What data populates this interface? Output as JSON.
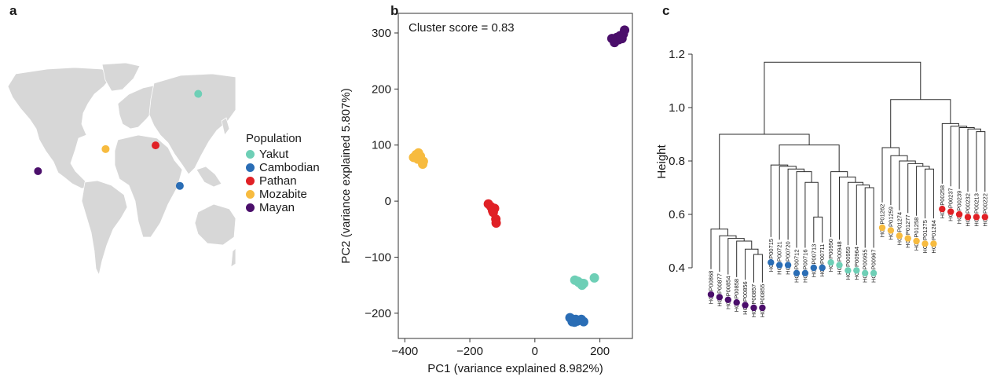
{
  "panels": {
    "a": {
      "letter": "a",
      "legend_title": "Population",
      "populations": [
        {
          "name": "Yakut",
          "color": "#6ecfb6"
        },
        {
          "name": "Cambodian",
          "color": "#2a6db5"
        },
        {
          "name": "Pathan",
          "color": "#e02126"
        },
        {
          "name": "Mozabite",
          "color": "#f7bb3f"
        },
        {
          "name": "Mayan",
          "color": "#4b0f6b"
        }
      ],
      "map_points": [
        {
          "population": "Yakut",
          "lon": 129,
          "lat": 62
        },
        {
          "population": "Cambodian",
          "lon": 104,
          "lat": 12
        },
        {
          "population": "Pathan",
          "lon": 71,
          "lat": 34
        },
        {
          "population": "Mozabite",
          "lon": 3,
          "lat": 32
        },
        {
          "population": "Mayan",
          "lon": -89,
          "lat": 20
        }
      ]
    },
    "b": {
      "letter": "b"
    },
    "c": {
      "letter": "c"
    }
  },
  "chart_data": [
    {
      "type": "scatter",
      "title": "",
      "annotation": "Cluster score = 0.83",
      "xlabel": "PC1 (variance explained 8.982%)",
      "ylabel": "PC2 (variance explained 5.807%)",
      "xlim": [
        -420,
        300
      ],
      "ylim": [
        -245,
        335
      ],
      "xticks": [
        -400,
        -200,
        0,
        200
      ],
      "yticks": [
        -200,
        -100,
        0,
        100,
        200,
        300
      ],
      "series": [
        {
          "name": "Mayan",
          "color": "#4b0f6b",
          "points": [
            [
              237,
              290
            ],
            [
              245,
              283
            ],
            [
              252,
              292
            ],
            [
              258,
              288
            ],
            [
              262,
              295
            ],
            [
              268,
              290
            ],
            [
              272,
              298
            ],
            [
              276,
              305
            ],
            [
              250,
              287
            ],
            [
              265,
              292
            ]
          ]
        },
        {
          "name": "Mozabite",
          "color": "#f7bb3f",
          "points": [
            [
              -373,
              78
            ],
            [
              -365,
              83
            ],
            [
              -360,
              75
            ],
            [
              -358,
              86
            ],
            [
              -352,
              80
            ],
            [
              -345,
              66
            ],
            [
              -343,
              71
            ],
            [
              -368,
              79
            ]
          ]
        },
        {
          "name": "Pathan",
          "color": "#e02126",
          "points": [
            [
              -143,
              -5
            ],
            [
              -135,
              -10
            ],
            [
              -130,
              -17
            ],
            [
              -124,
              -13
            ],
            [
              -120,
              -32
            ],
            [
              -119,
              -39
            ],
            [
              -128,
              -20
            ]
          ]
        },
        {
          "name": "Yakut",
          "color": "#6ecfb6",
          "points": [
            [
              123,
              -141
            ],
            [
              132,
              -143
            ],
            [
              140,
              -146
            ],
            [
              145,
              -150
            ],
            [
              150,
              -147
            ],
            [
              183,
              -137
            ],
            [
              135,
              -145
            ]
          ]
        },
        {
          "name": "Cambodian",
          "color": "#2a6db5",
          "points": [
            [
              108,
              -208
            ],
            [
              113,
              -210
            ],
            [
              118,
              -213
            ],
            [
              122,
              -216
            ],
            [
              126,
              -211
            ],
            [
              130,
              -214
            ],
            [
              143,
              -211
            ],
            [
              150,
              -215
            ],
            [
              115,
              -215
            ]
          ]
        }
      ]
    },
    {
      "type": "dendrogram",
      "title": "",
      "ylabel": "Height",
      "ylim": [
        0.3,
        1.25
      ],
      "yticks": [
        0.4,
        0.6,
        0.8,
        1.0,
        1.2
      ],
      "leaves": [
        {
          "label": "HGDP00868",
          "population": "Mayan"
        },
        {
          "label": "HGDP00877",
          "population": "Mayan"
        },
        {
          "label": "HGDP00854",
          "population": "Mayan"
        },
        {
          "label": "HGDP00858",
          "population": "Mayan"
        },
        {
          "label": "HGDP00856",
          "population": "Mayan"
        },
        {
          "label": "HGDP00857",
          "population": "Mayan"
        },
        {
          "label": "HGDP00855",
          "population": "Mayan"
        },
        {
          "label": "HGDP00715",
          "population": "Cambodian"
        },
        {
          "label": "HGDP00721",
          "population": "Cambodian"
        },
        {
          "label": "HGDP00720",
          "population": "Cambodian"
        },
        {
          "label": "HGDP00712",
          "population": "Cambodian"
        },
        {
          "label": "HGDP00716",
          "population": "Cambodian"
        },
        {
          "label": "HGDP00713",
          "population": "Cambodian"
        },
        {
          "label": "HGDP00711",
          "population": "Cambodian"
        },
        {
          "label": "HGDP00950",
          "population": "Yakut"
        },
        {
          "label": "HGDP00948",
          "population": "Yakut"
        },
        {
          "label": "HGDP00959",
          "population": "Yakut"
        },
        {
          "label": "HGDP00964",
          "population": "Yakut"
        },
        {
          "label": "HGDP00955",
          "population": "Yakut"
        },
        {
          "label": "HGDP00967",
          "population": "Yakut"
        },
        {
          "label": "HGDP01262",
          "population": "Mozabite"
        },
        {
          "label": "HGDP01259",
          "population": "Mozabite"
        },
        {
          "label": "HGDP01274",
          "population": "Mozabite"
        },
        {
          "label": "HGDP01277",
          "population": "Mozabite"
        },
        {
          "label": "HGDP01258",
          "population": "Mozabite"
        },
        {
          "label": "HGDP01275",
          "population": "Mozabite"
        },
        {
          "label": "HGDP01264",
          "population": "Mozabite"
        },
        {
          "label": "HGDP00258",
          "population": "Pathan"
        },
        {
          "label": "HGDP00237",
          "population": "Pathan"
        },
        {
          "label": "HGDP00239",
          "population": "Pathan"
        },
        {
          "label": "HGDP00232",
          "population": "Pathan"
        },
        {
          "label": "HGDP00213",
          "population": "Pathan"
        },
        {
          "label": "HGDP00222",
          "population": "Pathan"
        }
      ],
      "leaf_heights": [
        0.37,
        0.36,
        0.35,
        0.34,
        0.33,
        0.32,
        0.32,
        0.49,
        0.48,
        0.48,
        0.45,
        0.45,
        0.47,
        0.47,
        0.49,
        0.48,
        0.46,
        0.46,
        0.45,
        0.45,
        0.62,
        0.61,
        0.59,
        0.58,
        0.57,
        0.56,
        0.56,
        0.69,
        0.68,
        0.67,
        0.66,
        0.66,
        0.66
      ],
      "merges": [
        [
          5,
          6,
          0.45
        ],
        [
          4,
          -1,
          0.47
        ],
        [
          3,
          -2,
          0.5
        ],
        [
          2,
          -3,
          0.51
        ],
        [
          1,
          -4,
          0.52
        ],
        [
          0,
          -5,
          0.545
        ],
        [
          12,
          13,
          0.59
        ],
        [
          11,
          -7,
          0.72
        ],
        [
          10,
          -8,
          0.76
        ],
        [
          9,
          -9,
          0.77
        ],
        [
          8,
          -10,
          0.78
        ],
        [
          7,
          -11,
          0.785
        ],
        [
          18,
          19,
          0.7
        ],
        [
          17,
          -13,
          0.71
        ],
        [
          16,
          -14,
          0.72
        ],
        [
          15,
          -15,
          0.74
        ],
        [
          14,
          -16,
          0.76
        ],
        [
          -12,
          -17,
          0.86
        ],
        [
          -6,
          -18,
          0.9
        ],
        [
          25,
          26,
          0.77
        ],
        [
          24,
          -20,
          0.78
        ],
        [
          23,
          -21,
          0.79
        ],
        [
          22,
          -22,
          0.8
        ],
        [
          21,
          -23,
          0.82
        ],
        [
          20,
          -24,
          0.85
        ],
        [
          31,
          32,
          0.91
        ],
        [
          30,
          -26,
          0.92
        ],
        [
          29,
          -27,
          0.925
        ],
        [
          28,
          -28,
          0.93
        ],
        [
          27,
          -29,
          0.94
        ],
        [
          -25,
          -30,
          1.03
        ],
        [
          -19,
          -31,
          1.17
        ]
      ]
    }
  ]
}
